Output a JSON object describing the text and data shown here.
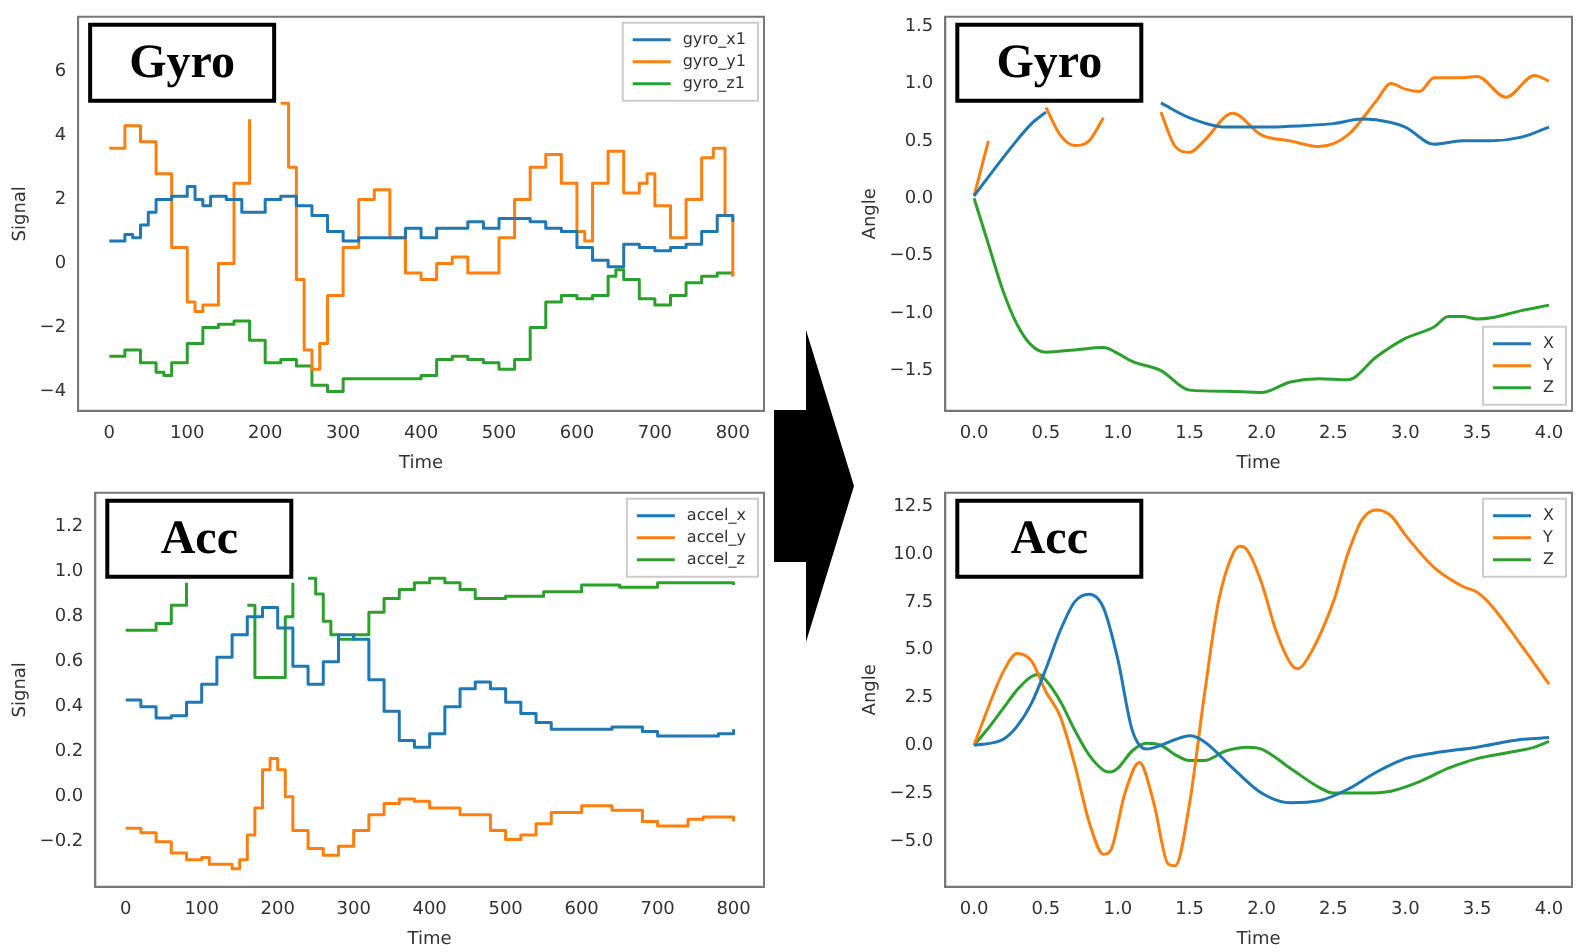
{
  "chart_data": [
    {
      "type": "step",
      "xlabel": "Time",
      "ylabel": "Signal",
      "annotations": [
        "Gyro"
      ],
      "legend": "top right",
      "xlim": [
        -40,
        840
      ],
      "ylim": [
        -4.6,
        7.7
      ],
      "xticks": [
        0,
        100,
        200,
        300,
        400,
        500,
        600,
        700,
        800
      ],
      "yticks": [
        {
          "value": -4,
          "label": "−4"
        },
        {
          "value": -2,
          "label": "−2"
        },
        0,
        2,
        4,
        6
      ],
      "series": [
        {
          "name": "gyro_x1",
          "color": "#1f77b4",
          "x": [
            0,
            20,
            30,
            40,
            50,
            60,
            80,
            100,
            110,
            120,
            130,
            150,
            170,
            180,
            200,
            220,
            240,
            260,
            280,
            300,
            320,
            340,
            360,
            380,
            400,
            420,
            440,
            460,
            480,
            500,
            520,
            540,
            560,
            580,
            600,
            620,
            640,
            660,
            680,
            700,
            720,
            740,
            760,
            780,
            800
          ],
          "values": [
            0.7,
            0.9,
            0.8,
            1.2,
            1.6,
            2.0,
            2.1,
            2.4,
            2.0,
            1.8,
            2.1,
            2.0,
            1.6,
            1.6,
            2.0,
            2.1,
            1.8,
            1.5,
            1.0,
            0.7,
            0.8,
            0.8,
            0.8,
            1.1,
            0.8,
            1.1,
            1.1,
            1.3,
            1.1,
            1.4,
            1.4,
            1.3,
            1.1,
            1.0,
            0.5,
            0.1,
            -0.1,
            0.6,
            0.5,
            0.4,
            0.5,
            0.6,
            1.0,
            1.5,
            1.3
          ]
        },
        {
          "name": "gyro_y1",
          "color": "#ff7f0e",
          "x": [
            0,
            20,
            40,
            60,
            80,
            100,
            110,
            120,
            140,
            160,
            180,
            190,
            200,
            210,
            220,
            230,
            240,
            250,
            260,
            270,
            280,
            300,
            320,
            340,
            360,
            380,
            400,
            420,
            440,
            460,
            480,
            500,
            520,
            540,
            560,
            580,
            600,
            610,
            620,
            640,
            660,
            680,
            690,
            700,
            720,
            740,
            760,
            775,
            790,
            800
          ],
          "values": [
            3.6,
            4.3,
            3.8,
            2.8,
            0.5,
            -1.2,
            -1.5,
            -1.3,
            0.0,
            2.5,
            4.5,
            null,
            null,
            null,
            5.0,
            3.0,
            -0.5,
            -2.7,
            -3.3,
            -2.5,
            -1.0,
            0.5,
            2.0,
            2.3,
            0.8,
            -0.3,
            -0.5,
            0.0,
            0.2,
            -0.3,
            -0.3,
            0.8,
            2.0,
            3.0,
            3.4,
            2.5,
            1.0,
            0.7,
            2.5,
            3.5,
            2.2,
            2.5,
            2.8,
            1.8,
            0.8,
            2.0,
            3.3,
            3.6,
            1.5,
            -0.4
          ]
        },
        {
          "name": "gyro_z1",
          "color": "#2ca02c",
          "x": [
            0,
            20,
            40,
            60,
            70,
            80,
            100,
            120,
            140,
            160,
            180,
            200,
            220,
            240,
            260,
            280,
            300,
            320,
            340,
            360,
            380,
            400,
            420,
            440,
            460,
            480,
            500,
            520,
            540,
            560,
            580,
            600,
            620,
            640,
            650,
            660,
            680,
            700,
            720,
            740,
            760,
            780,
            800
          ],
          "values": [
            -2.9,
            -2.7,
            -3.1,
            -3.4,
            -3.5,
            -3.1,
            -2.5,
            -2.0,
            -1.9,
            -1.8,
            -2.4,
            -3.1,
            -3.0,
            -3.2,
            -3.8,
            -4.0,
            -3.6,
            -3.6,
            -3.6,
            -3.6,
            -3.6,
            -3.5,
            -3.0,
            -2.9,
            -3.0,
            -3.1,
            -3.3,
            -3.0,
            -2.0,
            -1.2,
            -1.0,
            -1.1,
            -1.0,
            -0.4,
            -0.2,
            -0.5,
            -1.1,
            -1.3,
            -1.0,
            -0.6,
            -0.4,
            -0.3,
            -0.4
          ]
        }
      ]
    },
    {
      "type": "step",
      "xlabel": "Time",
      "ylabel": "Signal",
      "annotations": [
        "Acc"
      ],
      "legend": "top right",
      "xlim": [
        -40,
        840
      ],
      "ylim": [
        -0.4,
        1.35
      ],
      "xticks": [
        0,
        100,
        200,
        300,
        400,
        500,
        600,
        700,
        800
      ],
      "yticks": [
        {
          "value": -0.2,
          "label": "−0.2"
        },
        {
          "value": 0,
          "label": "0.0"
        },
        0.2,
        0.4,
        0.6,
        0.8,
        {
          "value": 1,
          "label": "1.0"
        },
        1.2
      ],
      "series": [
        {
          "name": "accel_x",
          "color": "#1f77b4",
          "x": [
            0,
            20,
            40,
            60,
            80,
            100,
            120,
            140,
            160,
            180,
            200,
            220,
            240,
            260,
            280,
            300,
            320,
            340,
            360,
            380,
            400,
            420,
            440,
            460,
            480,
            500,
            520,
            540,
            560,
            600,
            640,
            680,
            700,
            740,
            780,
            800
          ],
          "values": [
            0.43,
            0.4,
            0.35,
            0.36,
            0.42,
            0.5,
            0.62,
            0.72,
            0.8,
            0.84,
            0.75,
            0.58,
            0.5,
            0.6,
            0.72,
            0.7,
            0.52,
            0.38,
            0.25,
            0.22,
            0.28,
            0.4,
            0.48,
            0.51,
            0.48,
            0.42,
            0.37,
            0.33,
            0.3,
            0.3,
            0.31,
            0.29,
            0.27,
            0.27,
            0.28,
            0.3
          ]
        },
        {
          "name": "accel_y",
          "color": "#ff7f0e",
          "x": [
            0,
            20,
            40,
            60,
            80,
            100,
            110,
            140,
            150,
            160,
            170,
            180,
            190,
            200,
            210,
            220,
            240,
            260,
            280,
            300,
            320,
            340,
            360,
            380,
            400,
            440,
            480,
            500,
            520,
            540,
            560,
            600,
            640,
            680,
            700,
            740,
            760,
            800
          ],
          "values": [
            -0.14,
            -0.16,
            -0.2,
            -0.25,
            -0.28,
            -0.27,
            -0.3,
            -0.32,
            -0.28,
            -0.17,
            -0.05,
            0.12,
            0.17,
            0.12,
            0.0,
            -0.15,
            -0.23,
            -0.26,
            -0.22,
            -0.15,
            -0.08,
            -0.03,
            -0.01,
            -0.02,
            -0.05,
            -0.08,
            -0.15,
            -0.19,
            -0.17,
            -0.12,
            -0.07,
            -0.04,
            -0.06,
            -0.11,
            -0.13,
            -0.1,
            -0.09,
            -0.11
          ]
        },
        {
          "name": "accel_z",
          "color": "#2ca02c",
          "x": [
            0,
            20,
            40,
            60,
            80,
            100,
            120,
            140,
            160,
            170,
            200,
            210,
            220,
            230,
            240,
            250,
            260,
            270,
            280,
            300,
            320,
            340,
            360,
            380,
            400,
            420,
            440,
            460,
            480,
            500,
            550,
            600,
            650,
            700,
            750,
            800
          ],
          "values": [
            0.74,
            0.74,
            0.77,
            0.85,
            0.95,
            null,
            null,
            null,
            0.85,
            0.53,
            0.53,
            0.8,
            0.95,
            null,
            0.97,
            0.9,
            0.78,
            0.72,
            0.7,
            0.72,
            0.82,
            0.88,
            0.92,
            0.95,
            0.97,
            0.95,
            0.92,
            0.88,
            0.88,
            0.89,
            0.91,
            0.94,
            0.93,
            0.95,
            0.95,
            0.94
          ]
        }
      ]
    },
    {
      "type": "line",
      "xlabel": "Time",
      "ylabel": "Angle",
      "annotations": [
        "Gyro"
      ],
      "legend": "bottom right",
      "xlim": [
        -0.2,
        4.16
      ],
      "ylim": [
        -1.85,
        1.58
      ],
      "xticks": [
        {
          "value": 0,
          "label": "0.0"
        },
        0.5,
        {
          "value": 1,
          "label": "1.0"
        },
        1.5,
        {
          "value": 2,
          "label": "2.0"
        },
        2.5,
        {
          "value": 3,
          "label": "3.0"
        },
        3.5,
        {
          "value": 4,
          "label": "4.0"
        }
      ],
      "yticks": [
        {
          "value": -1.5,
          "label": "−1.5"
        },
        {
          "value": -1,
          "label": "−1.0"
        },
        {
          "value": -0.5,
          "label": "−0.5"
        },
        {
          "value": 0,
          "label": "0.0"
        },
        0.5,
        {
          "value": 1,
          "label": "1.0"
        },
        1.5
      ],
      "series": [
        {
          "name": "X",
          "color": "#1f77b4",
          "x": [
            0,
            0.2,
            0.4,
            0.5,
            0.8,
            1.3,
            1.5,
            1.75,
            2.0,
            2.25,
            2.5,
            2.7,
            2.9,
            3.0,
            3.2,
            3.4,
            3.6,
            3.8,
            4.0
          ],
          "values": [
            0.02,
            0.35,
            0.65,
            0.75,
            null,
            0.83,
            0.7,
            0.62,
            0.62,
            0.63,
            0.65,
            0.69,
            0.66,
            0.62,
            0.47,
            0.5,
            0.5,
            0.53,
            0.62
          ]
        },
        {
          "name": "Y",
          "color": "#ff7f0e",
          "x": [
            0,
            0.1,
            0.3,
            0.5,
            0.6,
            0.7,
            0.8,
            0.9,
            1.1,
            1.3,
            1.4,
            1.5,
            1.6,
            1.8,
            2.0,
            2.2,
            2.4,
            2.6,
            2.8,
            2.9,
            3.0,
            3.1,
            3.2,
            3.4,
            3.5,
            3.7,
            3.9,
            4.0
          ],
          "values": [
            0.02,
            0.5,
            null,
            0.79,
            0.55,
            0.46,
            0.5,
            0.7,
            null,
            0.75,
            0.45,
            0.4,
            0.5,
            0.74,
            0.55,
            0.5,
            0.45,
            0.55,
            0.85,
            1.0,
            0.95,
            0.93,
            1.05,
            1.05,
            1.06,
            0.88,
            1.07,
            1.02
          ]
        },
        {
          "name": "Z",
          "color": "#2ca02c",
          "x": [
            0,
            0.1,
            0.2,
            0.3,
            0.4,
            0.5,
            0.7,
            0.9,
            1.0,
            1.1,
            1.3,
            1.5,
            1.75,
            2.0,
            2.2,
            2.4,
            2.6,
            2.8,
            3.0,
            3.2,
            3.3,
            3.4,
            3.5,
            3.6,
            3.8,
            4.0
          ],
          "values": [
            0,
            -0.4,
            -0.8,
            -1.1,
            -1.28,
            -1.34,
            -1.32,
            -1.3,
            -1.35,
            -1.42,
            -1.5,
            -1.67,
            -1.68,
            -1.69,
            -1.6,
            -1.57,
            -1.58,
            -1.38,
            -1.22,
            -1.12,
            -1.03,
            -1.03,
            -1.05,
            -1.04,
            -0.98,
            -0.93
          ]
        }
      ]
    },
    {
      "type": "line",
      "xlabel": "Time",
      "ylabel": "Angle",
      "annotations": [
        "Acc"
      ],
      "legend": "top right",
      "xlim": [
        -0.2,
        4.16
      ],
      "ylim": [
        -7.4,
        13.2
      ],
      "xticks": [
        {
          "value": 0,
          "label": "0.0"
        },
        0.5,
        {
          "value": 1,
          "label": "1.0"
        },
        1.5,
        {
          "value": 2,
          "label": "2.0"
        },
        2.5,
        {
          "value": 3,
          "label": "3.0"
        },
        3.5,
        {
          "value": 4,
          "label": "4.0"
        }
      ],
      "yticks": [
        {
          "value": -5,
          "label": "−5.0"
        },
        {
          "value": -2.5,
          "label": "−2.5"
        },
        {
          "value": 0,
          "label": "0.0"
        },
        2.5,
        {
          "value": 5,
          "label": "5.0"
        },
        7.5,
        {
          "value": 10,
          "label": "10.0"
        },
        12.5
      ],
      "series": [
        {
          "name": "X",
          "color": "#1f77b4",
          "x": [
            0,
            0.2,
            0.3,
            0.4,
            0.5,
            0.6,
            0.7,
            0.8,
            0.9,
            1.0,
            1.1,
            1.2,
            1.3,
            1.4,
            1.5,
            1.6,
            1.8,
            2.0,
            2.2,
            2.4,
            2.6,
            2.8,
            3.0,
            3.2,
            3.5,
            3.8,
            4.0
          ],
          "values": [
            0,
            0.3,
            1.0,
            2.2,
            4.0,
            6.0,
            7.5,
            7.9,
            7.2,
            4.5,
            0.8,
            -0.2,
            0.0,
            0.3,
            0.5,
            0.2,
            -1.2,
            -2.5,
            -3.0,
            -2.9,
            -2.3,
            -1.4,
            -0.7,
            -0.4,
            -0.1,
            0.3,
            0.4
          ]
        },
        {
          "name": "Y",
          "color": "#ff7f0e",
          "x": [
            0,
            0.1,
            0.2,
            0.3,
            0.4,
            0.5,
            0.6,
            0.7,
            0.8,
            0.9,
            0.95,
            1.05,
            1.15,
            1.25,
            1.35,
            1.4,
            1.5,
            1.6,
            1.7,
            1.8,
            1.85,
            1.9,
            2.0,
            2.1,
            2.2,
            2.25,
            2.3,
            2.5,
            2.6,
            2.7,
            2.8,
            2.9,
            3.0,
            3.2,
            3.4,
            3.5,
            3.6,
            3.8,
            4.0
          ],
          "values": [
            0,
            2.0,
            3.8,
            4.8,
            4.4,
            2.8,
            1.5,
            -1.0,
            -4.0,
            -5.7,
            -5.5,
            -2.5,
            -0.9,
            -3.0,
            -6.2,
            -6.3,
            -3.0,
            2.5,
            7.5,
            10.0,
            10.4,
            10.2,
            8.5,
            6.0,
            4.3,
            4.0,
            4.3,
            7.5,
            10.0,
            11.8,
            12.3,
            12.0,
            11.0,
            9.3,
            8.3,
            8.0,
            7.3,
            5.3,
            3.2
          ]
        },
        {
          "name": "Z",
          "color": "#2ca02c",
          "x": [
            0,
            0.1,
            0.2,
            0.3,
            0.4,
            0.45,
            0.5,
            0.6,
            0.7,
            0.8,
            0.9,
            0.95,
            1.0,
            1.1,
            1.2,
            1.3,
            1.4,
            1.5,
            1.6,
            1.75,
            1.9,
            2.0,
            2.2,
            2.4,
            2.5,
            2.7,
            2.9,
            3.1,
            3.3,
            3.5,
            3.7,
            3.9,
            4.0
          ],
          "values": [
            0,
            0.9,
            1.9,
            2.9,
            3.6,
            3.7,
            3.4,
            2.3,
            0.8,
            -0.5,
            -1.3,
            -1.4,
            -1.2,
            -0.3,
            0.1,
            0.0,
            -0.5,
            -0.8,
            -0.8,
            -0.3,
            -0.1,
            -0.2,
            -1.2,
            -2.2,
            -2.5,
            -2.5,
            -2.4,
            -1.9,
            -1.2,
            -0.7,
            -0.4,
            -0.1,
            0.2
          ]
        }
      ]
    }
  ]
}
